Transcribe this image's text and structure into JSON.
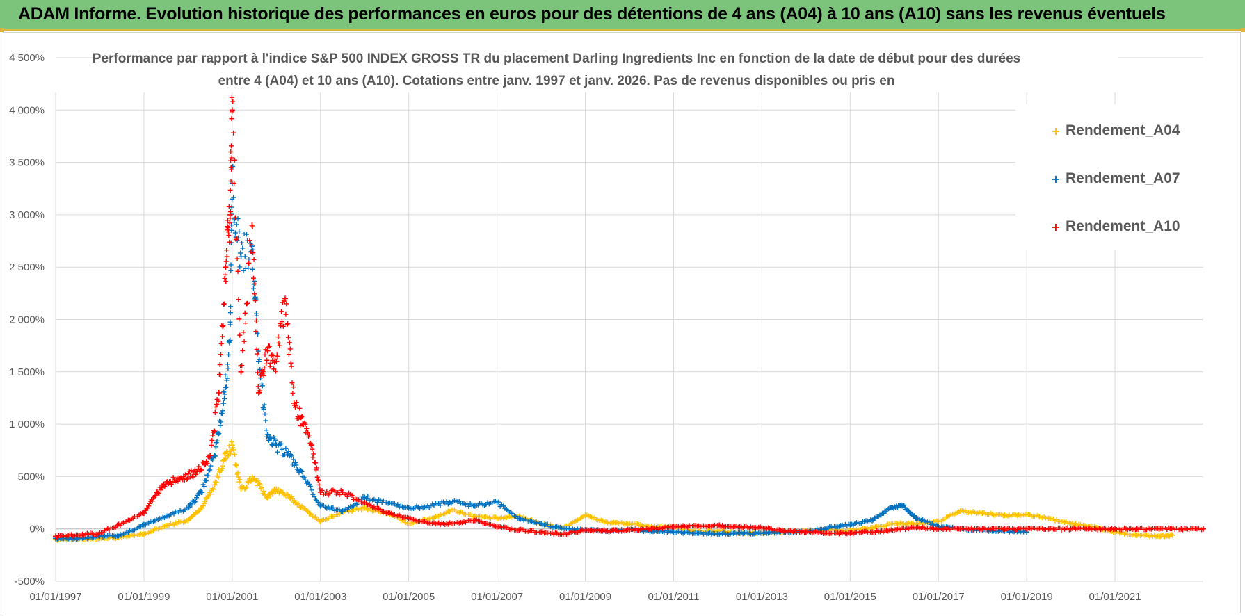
{
  "banner": {
    "title": "ADAM Informe. Evolution historique des performances en euros pour des détentions de 4 ans (A04) à 10 ans (A10) sans les revenus éventuels"
  },
  "colors": {
    "banner_bg": "#7cc47c",
    "accent": "#d7b63b",
    "A04": "#ffc000",
    "A07": "#0070c0",
    "A10": "#ff0000",
    "grid": "#d9d9d9"
  },
  "chart_data": {
    "type": "scatter",
    "title_line1": "Performance par rapport à l'indice S&P 500 INDEX GROSS TR  du placement Darling Ingredients Inc en fonction de la date de début pour des durées",
    "title_line2": "entre 4 (A04) et 10 ans (A10). Cotations entre janv. 1997 et janv. 2026. Pas de revenus disponibles ou pris en",
    "xlabel": "",
    "ylabel": "",
    "x_range": [
      1997.0,
      2023.0
    ],
    "ylim": [
      -500,
      4500
    ],
    "grid": true,
    "legend_position": "right",
    "y_ticks": [
      {
        "value": 4500,
        "label": "4 500%"
      },
      {
        "value": 4000,
        "label": "4 000%"
      },
      {
        "value": 3500,
        "label": "3 500%"
      },
      {
        "value": 3000,
        "label": "3 000%"
      },
      {
        "value": 2500,
        "label": "2 500%"
      },
      {
        "value": 2000,
        "label": "2 000%"
      },
      {
        "value": 1500,
        "label": "1 500%"
      },
      {
        "value": 1000,
        "label": "1 000%"
      },
      {
        "value": 500,
        "label": "500%"
      },
      {
        "value": 0,
        "label": "0%"
      },
      {
        "value": -500,
        "label": "-500%"
      }
    ],
    "x_ticks": [
      {
        "value": 1997,
        "label": "01/01/1997"
      },
      {
        "value": 1999,
        "label": "01/01/1999"
      },
      {
        "value": 2001,
        "label": "01/01/2001"
      },
      {
        "value": 2003,
        "label": "01/01/2003"
      },
      {
        "value": 2005,
        "label": "01/01/2005"
      },
      {
        "value": 2007,
        "label": "01/01/2007"
      },
      {
        "value": 2009,
        "label": "01/01/2009"
      },
      {
        "value": 2011,
        "label": "01/01/2011"
      },
      {
        "value": 2013,
        "label": "01/01/2013"
      },
      {
        "value": 2015,
        "label": "01/01/2015"
      },
      {
        "value": 2017,
        "label": "01/01/2017"
      },
      {
        "value": 2019,
        "label": "01/01/2019"
      },
      {
        "value": 2021,
        "label": "01/01/2021"
      }
    ],
    "series": [
      {
        "name": "Rendement_A04",
        "color": "#ffc000",
        "x": [
          1997.0,
          1997.5,
          1998.0,
          1998.5,
          1999.0,
          1999.5,
          2000.0,
          2000.3,
          2000.6,
          2000.8,
          2001.0,
          2001.2,
          2001.5,
          2001.8,
          2002.0,
          2002.3,
          2002.6,
          2003.0,
          2003.5,
          2004.0,
          2004.5,
          2005.0,
          2005.5,
          2006.0,
          2006.5,
          2007.0,
          2007.5,
          2008.0,
          2008.5,
          2009.0,
          2009.5,
          2010.0,
          2010.5,
          2011.0,
          2011.5,
          2012.0,
          2012.5,
          2013.0,
          2013.5,
          2014.0,
          2014.5,
          2015.0,
          2015.5,
          2016.0,
          2016.5,
          2017.0,
          2017.5,
          2018.0,
          2018.5,
          2019.0,
          2019.5,
          2020.0,
          2020.5,
          2021.0,
          2021.5,
          2022.0,
          2022.3
        ],
        "y": [
          -100,
          -100,
          -90,
          -80,
          -50,
          30,
          80,
          200,
          420,
          650,
          800,
          380,
          480,
          300,
          380,
          300,
          200,
          70,
          160,
          200,
          150,
          50,
          100,
          180,
          120,
          100,
          120,
          50,
          10,
          130,
          60,
          50,
          20,
          20,
          -30,
          -20,
          -40,
          -40,
          -30,
          -20,
          -10,
          -20,
          10,
          50,
          50,
          70,
          170,
          150,
          130,
          140,
          100,
          50,
          20,
          -30,
          -60,
          -70,
          -60
        ]
      },
      {
        "name": "Rendement_A07",
        "color": "#0070c0",
        "x": [
          1997.0,
          1997.5,
          1998.0,
          1998.5,
          1999.0,
          1999.5,
          2000.0,
          2000.3,
          2000.6,
          2000.8,
          2000.95,
          2001.0,
          2001.2,
          2001.45,
          2001.6,
          2001.8,
          2002.0,
          2002.3,
          2002.6,
          2003.0,
          2003.5,
          2004.0,
          2004.5,
          2005.0,
          2005.5,
          2006.0,
          2006.5,
          2007.0,
          2007.5,
          2008.0,
          2008.5,
          2009.0,
          2009.5,
          2010.0,
          2010.5,
          2011.0,
          2011.5,
          2012.0,
          2012.5,
          2013.0,
          2013.5,
          2014.0,
          2014.5,
          2015.0,
          2015.5,
          2015.9,
          2016.2,
          2016.5,
          2017.0,
          2017.5,
          2018.0,
          2018.5,
          2019.0
        ],
        "y": [
          -90,
          -90,
          -70,
          -60,
          40,
          120,
          200,
          350,
          700,
          1200,
          1800,
          3300,
          2600,
          2700,
          1600,
          900,
          800,
          700,
          500,
          220,
          170,
          300,
          250,
          200,
          220,
          260,
          220,
          250,
          100,
          50,
          0,
          -10,
          -20,
          -10,
          -20,
          -30,
          -40,
          -50,
          -40,
          -40,
          -30,
          -30,
          10,
          40,
          80,
          200,
          220,
          100,
          20,
          0,
          -10,
          -20,
          -30
        ]
      },
      {
        "name": "Rendement_A10",
        "color": "#ff0000",
        "x": [
          1997.0,
          1997.5,
          1998.0,
          1998.5,
          1999.0,
          1999.3,
          1999.6,
          1999.9,
          2000.2,
          2000.5,
          2000.7,
          2000.85,
          2000.95,
          2001.0,
          2001.2,
          2001.45,
          2001.6,
          2001.8,
          2002.0,
          2002.2,
          2002.4,
          2002.6,
          2002.8,
          2003.0,
          2003.5,
          2004.0,
          2004.5,
          2005.0,
          2005.5,
          2006.0,
          2006.5,
          2007.0,
          2007.5,
          2008.0,
          2008.5,
          2009.0,
          2009.5,
          2010.0,
          2010.5,
          2011.0,
          2011.5,
          2012.0,
          2012.5,
          2013.0,
          2013.5,
          2014.0,
          2014.5,
          2015.0,
          2015.5,
          2016.0,
          2016.5,
          2017.0,
          2017.5,
          2018.0,
          2018.5,
          2019.0,
          2019.5,
          2020.0,
          2020.5,
          2021.0,
          2021.5,
          2022.0,
          2022.5,
          2023.0
        ],
        "y": [
          -70,
          -60,
          -40,
          50,
          150,
          350,
          450,
          500,
          550,
          700,
          1300,
          2500,
          3000,
          4000,
          1500,
          2900,
          1300,
          1700,
          1600,
          2200,
          1200,
          1000,
          800,
          350,
          350,
          250,
          150,
          100,
          50,
          50,
          80,
          20,
          -10,
          -30,
          -50,
          -10,
          -20,
          -10,
          0,
          20,
          30,
          30,
          20,
          10,
          -20,
          -30,
          -40,
          -40,
          -30,
          -10,
          10,
          0,
          0,
          0,
          0,
          0,
          0,
          0,
          0,
          0,
          0,
          0,
          0,
          0
        ]
      }
    ]
  }
}
